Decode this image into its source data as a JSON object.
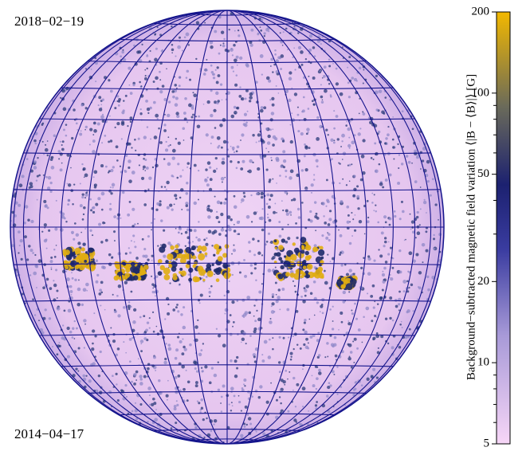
{
  "image": {
    "top_left_label": "2018−02−19",
    "bottom_left_label": "2014−04−17",
    "colorbar": {
      "label": "Background−subtracted magnetic field variation   ⟨|B − ⟨B⟩|⟩  [G]",
      "lim": [
        5,
        200
      ],
      "log": true,
      "ticks": [
        5,
        10,
        20,
        50,
        100,
        200
      ],
      "minor_ticks": [
        6,
        7,
        8,
        9,
        30,
        40,
        60,
        70,
        80,
        90
      ]
    }
  }
}
